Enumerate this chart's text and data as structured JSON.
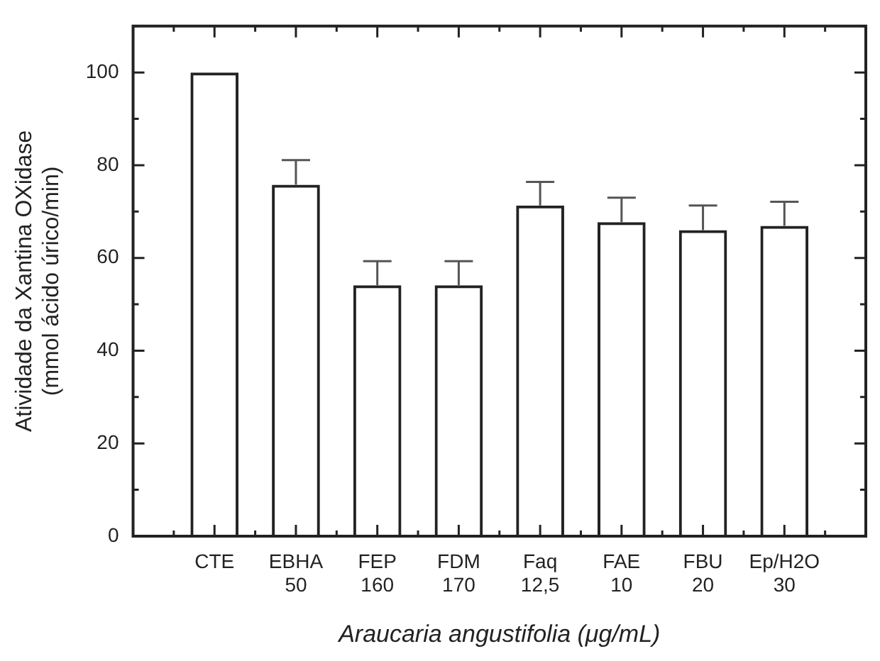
{
  "chart_data": {
    "type": "bar",
    "xlabel": "Araucaria angustifolia (μg/mL)",
    "ylabel": "Atividade da Xantina OXidase\n(mmol ácido úrico/min)",
    "categories": [
      null,
      "CTE",
      "EBHA\n50",
      "FEP\n160",
      "FDM\n170",
      "Faq\n12,5",
      "FAE\n10",
      "FBU\n20",
      "Ep/H2O\n30",
      null
    ],
    "values": [
      null,
      100,
      75.8,
      54.1,
      54.1,
      71.3,
      67.7,
      66.0,
      66.9,
      null
    ],
    "errors": [
      null,
      null,
      [
        75.8,
        81.1
      ],
      [
        54.1,
        59.3
      ],
      [
        54.1,
        59.3
      ],
      [
        71.3,
        76.4
      ],
      [
        67.7,
        73.0
      ],
      [
        66.0,
        71.3
      ],
      [
        66.9,
        72.1
      ],
      null
    ],
    "color": "#222222",
    "ylim": [
      0,
      110
    ],
    "yticks": [
      0,
      {
        "value": 10,
        "label": null
      },
      20,
      {
        "value": 30,
        "label": null
      },
      40,
      {
        "value": 50,
        "label": null
      },
      60,
      {
        "value": 70,
        "label": null
      },
      80,
      {
        "value": 90,
        "label": null
      },
      100,
      {
        "value": 110,
        "label": null
      }
    ],
    "grid": false,
    "legend": false
  }
}
